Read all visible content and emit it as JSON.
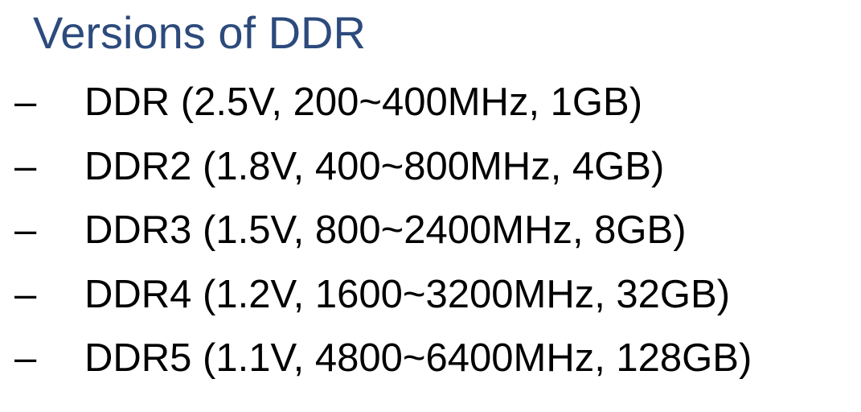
{
  "slide": {
    "title": "Versions of DDR",
    "bullet_marker": "–",
    "items": [
      "DDR (2.5V, 200~400MHz, 1GB)",
      "DDR2 (1.8V, 400~800MHz, 4GB)",
      "DDR3 (1.5V, 800~2400MHz, 8GB)",
      "DDR4 (1.2V, 1600~3200MHz, 32GB)",
      "DDR5 (1.1V, 4800~6400MHz, 128GB)"
    ]
  },
  "colors": {
    "title": "#2c4a7c",
    "body_text": "#000000",
    "background": "#ffffff"
  }
}
